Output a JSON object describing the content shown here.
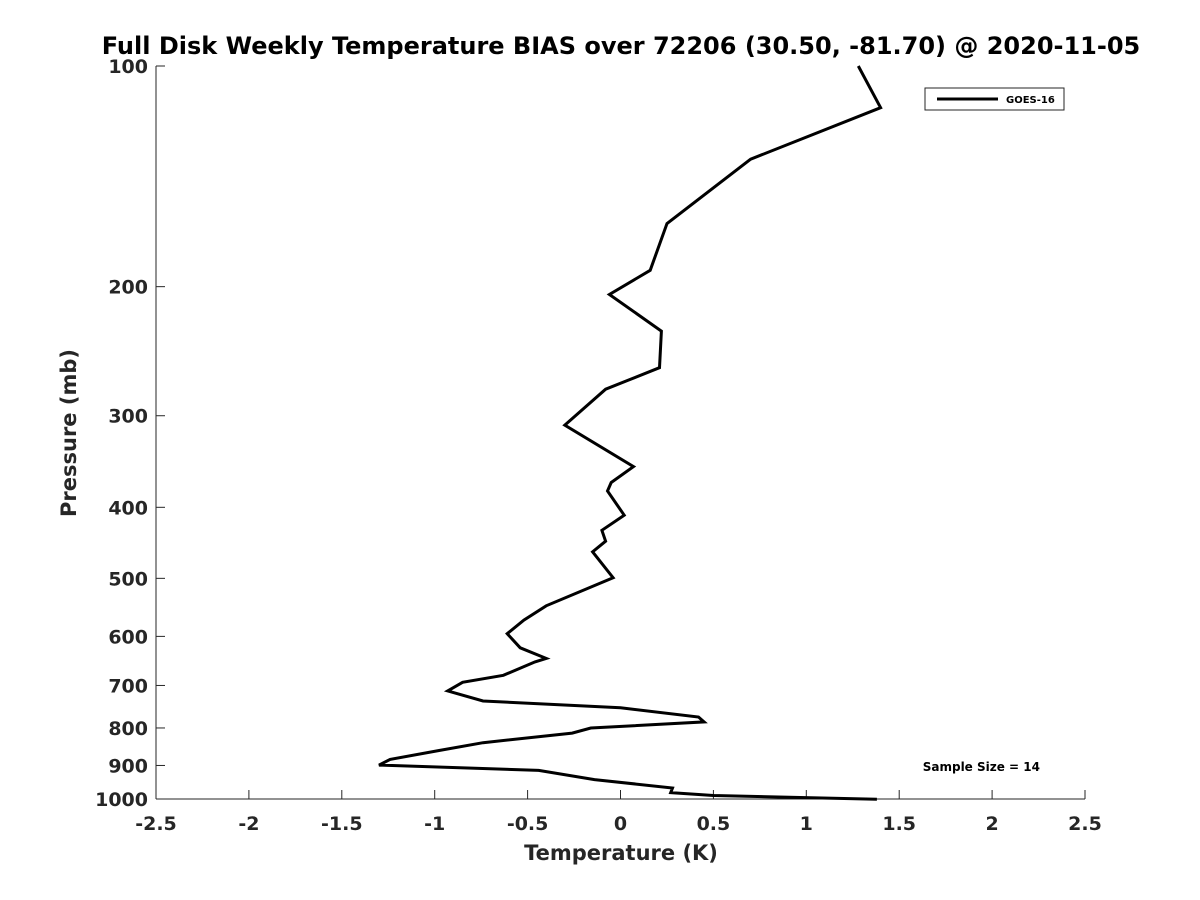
{
  "chart_data": {
    "type": "line",
    "title": "Full Disk Weekly Temperature BIAS over 72206 (30.50, -81.70) @ 2020-11-05",
    "xlabel": "Temperature (K)",
    "ylabel": "Pressure (mb)",
    "xlim": [
      -2.5,
      2.5
    ],
    "ylim": [
      1000,
      100
    ],
    "y_scale": "log",
    "y_reversed": true,
    "grid": false,
    "legend_position": "top-right",
    "x_ticks": [
      "-2.5",
      "-2",
      "-1.5",
      "-1",
      "-0.5",
      "0",
      "0.5",
      "1",
      "1.5",
      "2",
      "2.5"
    ],
    "y_ticks": [
      "100",
      "200",
      "300",
      "400",
      "500",
      "600",
      "700",
      "800",
      "900",
      "1000"
    ],
    "series": [
      {
        "name": "GOES-16",
        "color": "#000000",
        "x": [
          1.28,
          1.4,
          0.7,
          0.25,
          0.16,
          -0.06,
          0.22,
          0.21,
          -0.08,
          -0.3,
          0.07,
          -0.05,
          -0.07,
          0.02,
          -0.1,
          -0.08,
          -0.15,
          -0.04,
          -0.4,
          -0.52,
          -0.61,
          -0.54,
          -0.4,
          -0.46,
          -0.63,
          -0.85,
          -0.93,
          -0.74,
          0.0,
          0.42,
          0.45,
          -0.16,
          -0.26,
          -0.74,
          -0.98,
          -1.24,
          -1.3,
          -0.44,
          -0.14,
          0.28,
          0.27,
          0.5,
          1.38
        ],
        "y": [
          100,
          114,
          134,
          164,
          190,
          205,
          230,
          258,
          276,
          309,
          352,
          370,
          380,
          410,
          430,
          445,
          460,
          499,
          545,
          570,
          595,
          622,
          643,
          650,
          678,
          693,
          712,
          735,
          751,
          773,
          785,
          800,
          813,
          838,
          859,
          883,
          899,
          914,
          941,
          966,
          980,
          989,
          1001
        ]
      }
    ],
    "annotations": [
      "Sample Size = 14"
    ]
  }
}
